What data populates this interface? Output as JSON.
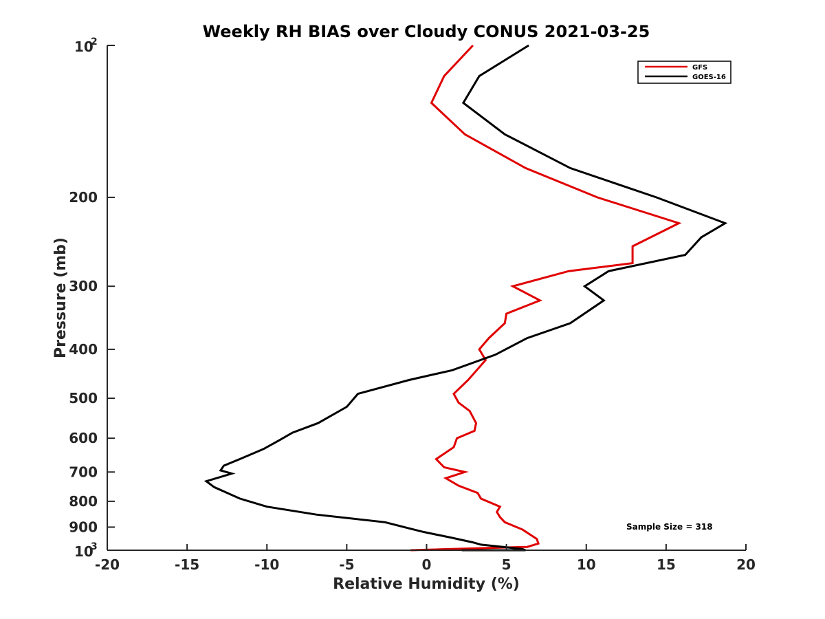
{
  "chart_data": {
    "type": "line",
    "title": "Weekly RH BIAS over Cloudy CONUS 2021-03-25",
    "xlabel": "Relative Humidity (%)",
    "ylabel": "Pressure (mb)",
    "xlim": [
      -20,
      20
    ],
    "ylim": [
      100,
      1000
    ],
    "y_scale": "log",
    "y_reversed": true,
    "grid": false,
    "legend_position": "top-right",
    "x_ticks": [
      "-20",
      "-15",
      "-10",
      "-5",
      "0",
      "5",
      "10",
      "15",
      "20"
    ],
    "y_ticks": [
      {
        "base": "10",
        "exp": "2"
      },
      {
        "label": "200"
      },
      {
        "label": "300"
      },
      {
        "label": "400"
      },
      {
        "label": "500"
      },
      {
        "label": "600"
      },
      {
        "label": "700"
      },
      {
        "label": "800"
      },
      {
        "label": "900"
      },
      {
        "base": "10",
        "exp": "3"
      }
    ],
    "annotation": "Sample Size = 318",
    "series": [
      {
        "name": "GFS",
        "color": "#e00000",
        "points": [
          [
            2.9,
            100
          ],
          [
            1.1,
            115
          ],
          [
            0.3,
            130
          ],
          [
            2.4,
            150
          ],
          [
            6.2,
            175
          ],
          [
            10.7,
            200
          ],
          [
            15.8,
            225
          ],
          [
            12.9,
            250
          ],
          [
            12.9,
            270
          ],
          [
            8.9,
            280
          ],
          [
            5.4,
            300
          ],
          [
            7.1,
            320
          ],
          [
            5.0,
            340
          ],
          [
            4.9,
            355
          ],
          [
            3.9,
            380
          ],
          [
            3.3,
            400
          ],
          [
            3.7,
            420
          ],
          [
            2.6,
            460
          ],
          [
            1.7,
            490
          ],
          [
            2.0,
            510
          ],
          [
            2.7,
            530
          ],
          [
            3.1,
            560
          ],
          [
            3.0,
            580
          ],
          [
            1.9,
            600
          ],
          [
            1.7,
            625
          ],
          [
            0.6,
            660
          ],
          [
            1.1,
            685
          ],
          [
            2.4,
            700
          ],
          [
            1.2,
            720
          ],
          [
            2.0,
            745
          ],
          [
            3.2,
            770
          ],
          [
            3.4,
            790
          ],
          [
            4.6,
            820
          ],
          [
            4.4,
            840
          ],
          [
            4.6,
            860
          ],
          [
            4.9,
            880
          ],
          [
            6.0,
            910
          ],
          [
            6.9,
            950
          ],
          [
            7.0,
            970
          ],
          [
            6.3,
            985
          ],
          [
            -1.0,
            1000
          ]
        ]
      },
      {
        "name": "GOES-16",
        "color": "#000000",
        "points": [
          [
            6.4,
            100
          ],
          [
            3.3,
            115
          ],
          [
            2.3,
            130
          ],
          [
            4.9,
            150
          ],
          [
            9.0,
            175
          ],
          [
            14.4,
            200
          ],
          [
            18.7,
            225
          ],
          [
            17.2,
            240
          ],
          [
            16.2,
            260
          ],
          [
            11.4,
            280
          ],
          [
            9.9,
            300
          ],
          [
            11.1,
            320
          ],
          [
            9.0,
            355
          ],
          [
            6.3,
            380
          ],
          [
            4.3,
            410
          ],
          [
            1.6,
            440
          ],
          [
            -1.1,
            460
          ],
          [
            -4.3,
            490
          ],
          [
            -5.0,
            520
          ],
          [
            -6.8,
            560
          ],
          [
            -8.4,
            585
          ],
          [
            -9.2,
            605
          ],
          [
            -10.2,
            630
          ],
          [
            -11.7,
            660
          ],
          [
            -12.7,
            680
          ],
          [
            -12.9,
            695
          ],
          [
            -12.2,
            705
          ],
          [
            -13.8,
            730
          ],
          [
            -13.3,
            750
          ],
          [
            -11.7,
            790
          ],
          [
            -10.0,
            820
          ],
          [
            -6.9,
            850
          ],
          [
            -2.6,
            880
          ],
          [
            -1.4,
            900
          ],
          [
            -0.2,
            920
          ],
          [
            1.6,
            945
          ],
          [
            2.9,
            965
          ],
          [
            3.4,
            975
          ],
          [
            4.8,
            985
          ],
          [
            6.0,
            995
          ],
          [
            6.2,
            1000
          ],
          [
            2.2,
            1000
          ]
        ]
      }
    ]
  }
}
